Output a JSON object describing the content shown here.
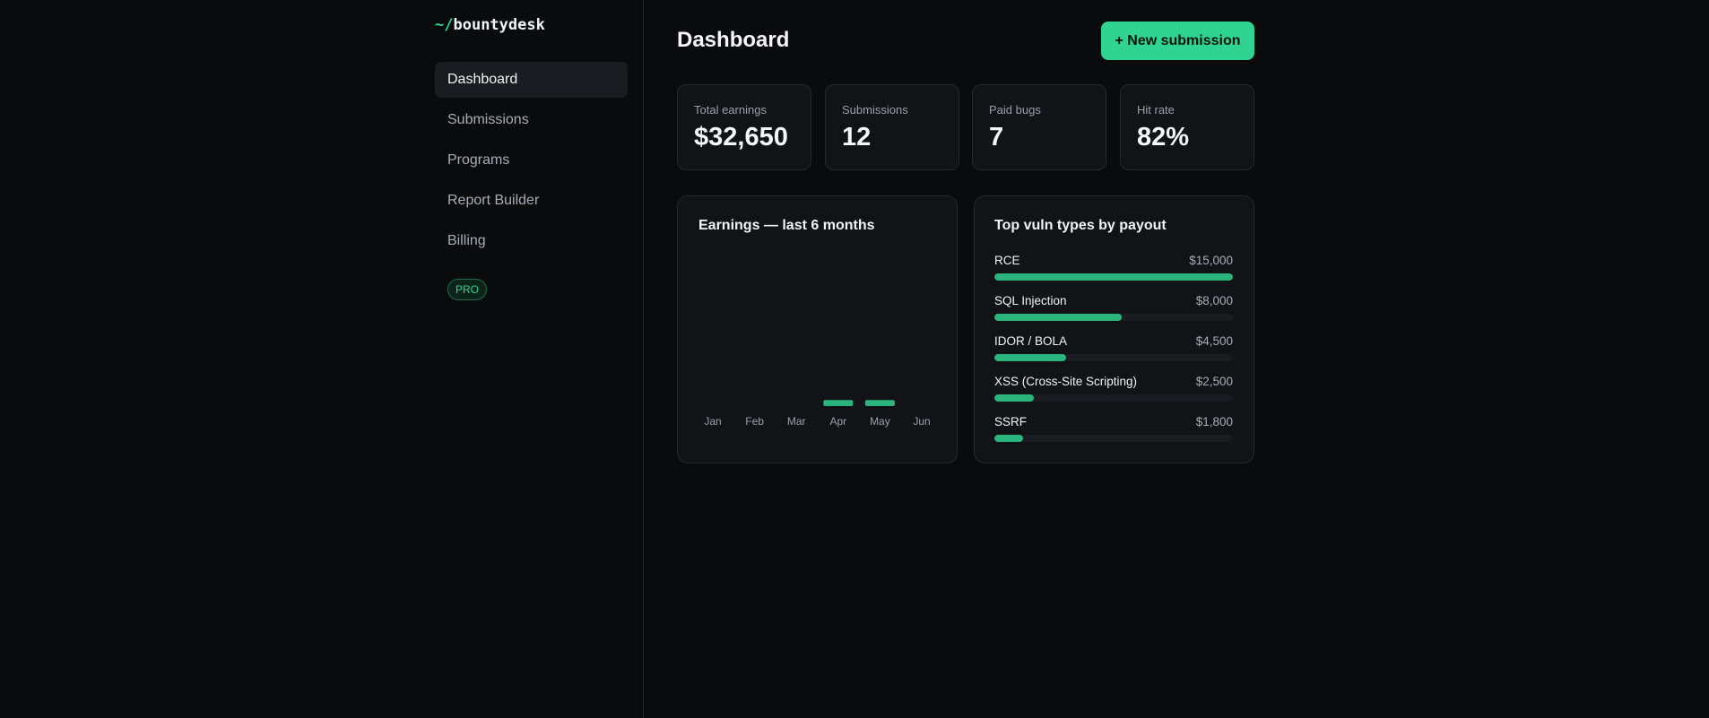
{
  "brand": {
    "prefix": "~/",
    "name": "bountydesk"
  },
  "sidebar": {
    "items": [
      {
        "label": "Dashboard",
        "active": true
      },
      {
        "label": "Submissions"
      },
      {
        "label": "Programs"
      },
      {
        "label": "Report Builder"
      },
      {
        "label": "Billing"
      }
    ],
    "badge": "PRO"
  },
  "header": {
    "title": "Dashboard",
    "new_button": "+ New submission"
  },
  "stats": [
    {
      "label": "Total earnings",
      "value": "$32,650"
    },
    {
      "label": "Submissions",
      "value": "12"
    },
    {
      "label": "Paid bugs",
      "value": "7"
    },
    {
      "label": "Hit rate",
      "value": "82%"
    }
  ],
  "earnings_card": {
    "title": "Earnings — last 6 months"
  },
  "vuln_card": {
    "title": "Top vuln types by payout",
    "items": [
      {
        "name": "RCE",
        "amount": "$15,000",
        "fill": 1.0
      },
      {
        "name": "SQL Injection",
        "amount": "$8,000",
        "fill": 0.533
      },
      {
        "name": "IDOR / BOLA",
        "amount": "$4,500",
        "fill": 0.3
      },
      {
        "name": "XSS (Cross-Site Scripting)",
        "amount": "$2,500",
        "fill": 0.167
      },
      {
        "name": "SSRF",
        "amount": "$1,800",
        "fill": 0.12
      }
    ]
  },
  "colors": {
    "accent": "#2fd492",
    "bar": "#2bb57d",
    "background": "#0a0b0d",
    "card": "#111317"
  },
  "chart_data": {
    "type": "bar",
    "title": "Earnings — last 6 months",
    "categories": [
      "Jan",
      "Feb",
      "Mar",
      "Apr",
      "May",
      "Jun"
    ],
    "values": [
      0,
      0,
      0,
      0.04,
      0.04,
      0
    ],
    "ylim": [
      0,
      1
    ],
    "xlabel": "",
    "ylabel": "",
    "grid": false
  }
}
